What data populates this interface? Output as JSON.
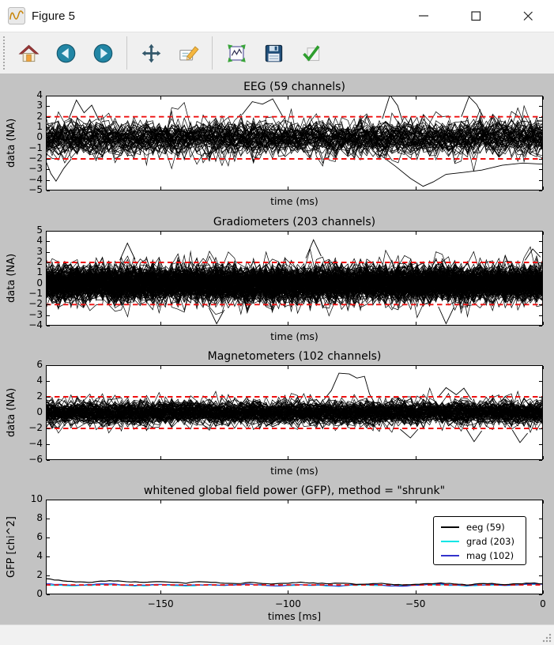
{
  "window": {
    "title": "Figure 5",
    "controls": [
      {
        "icon": "minimize-icon"
      },
      {
        "icon": "maximize-icon"
      },
      {
        "icon": "close-icon"
      }
    ]
  },
  "toolbar": {
    "buttons": [
      {
        "icon": "home-icon"
      },
      {
        "icon": "back-icon"
      },
      {
        "icon": "forward-icon"
      },
      {
        "icon": "pan-icon"
      },
      {
        "icon": "edit-plot-icon"
      },
      {
        "icon": "configure-subplots-icon"
      },
      {
        "icon": "save-icon"
      },
      {
        "icon": "customize-icon"
      }
    ]
  },
  "colors": {
    "figure_bg": "#c3c3c3",
    "axes_bg": "#ffffff",
    "trace_black": "#000000",
    "threshold_red": "#ee1010",
    "grad_cyan": "#00e5e5",
    "mag_blue": "#3333cc"
  },
  "chart_data": [
    {
      "type": "line",
      "title": "EEG (59 channels)",
      "xlabel": "time (ms)",
      "ylabel": "data (NA)",
      "xlim": [
        -195,
        0
      ],
      "ylim": [
        -5,
        4
      ],
      "yticks": {
        "values": [
          4,
          3,
          2,
          1,
          0,
          -1,
          -2,
          -3,
          -4,
          -5
        ],
        "labels": [
          "4",
          "3",
          "2",
          "1",
          "0",
          "−1",
          "−2",
          "−3",
          "−4",
          "−5"
        ]
      },
      "xticks": {
        "values": [
          -150,
          -100,
          -50,
          0
        ],
        "labels": []
      },
      "n_channels": 59,
      "band_sd": 1.05,
      "clip": [
        -4.6,
        3.95
      ],
      "seed": 11,
      "threshold_lines": {
        "values": [
          2,
          -2
        ],
        "style": "dashed"
      },
      "outliers": [
        [
          [
            -64,
            -1.6
          ],
          [
            -58,
            -2.6
          ],
          [
            -52,
            -3.9
          ],
          [
            -47,
            -4.5
          ],
          [
            -43,
            -4.1
          ],
          [
            -38,
            -3.5
          ],
          [
            -31,
            -3.3
          ],
          [
            -24,
            -3.05
          ],
          [
            -16,
            -2.7
          ],
          [
            -8,
            -2.3
          ],
          [
            0,
            -2.5
          ]
        ],
        [
          [
            -195,
            -2.2
          ],
          [
            -193,
            -3.3
          ],
          [
            -191,
            -4.1
          ],
          [
            -188,
            -3.0
          ],
          [
            -185,
            -2.0
          ]
        ],
        [
          [
            -186,
            1.8
          ],
          [
            -183,
            3.6
          ],
          [
            -180,
            2.4
          ],
          [
            -177,
            3.2
          ],
          [
            -174,
            1.6
          ]
        ],
        [
          [
            -118,
            2.2
          ],
          [
            -114,
            3.5
          ],
          [
            -110,
            3.3
          ],
          [
            -106,
            3.6
          ],
          [
            -102,
            2.0
          ]
        ],
        [
          [
            -63,
            1.8
          ],
          [
            -60,
            4.0
          ],
          [
            -57,
            3.1
          ],
          [
            -55,
            1.5
          ]
        ],
        [
          [
            -32,
            2.0
          ],
          [
            -29,
            3.9
          ],
          [
            -26,
            3.2
          ],
          [
            -23,
            1.8
          ]
        ]
      ]
    },
    {
      "type": "line",
      "title": "Gradiometers (203 channels)",
      "xlabel": "time (ms)",
      "ylabel": "data (NA)",
      "xlim": [
        -195,
        0
      ],
      "ylim": [
        -4,
        5
      ],
      "yticks": {
        "values": [
          5,
          4,
          3,
          2,
          1,
          0,
          -1,
          -2,
          -3,
          -4
        ],
        "labels": [
          "5",
          "4",
          "3",
          "2",
          "1",
          "0",
          "−1",
          "−2",
          "−3",
          "−4"
        ]
      },
      "xticks": {
        "values": [
          -150,
          -100,
          -50,
          0
        ],
        "labels": []
      },
      "n_channels": 203,
      "band_sd": 1.0,
      "clip": [
        -3.95,
        4.2
      ],
      "seed": 22,
      "threshold_lines": {
        "values": [
          2,
          -2
        ],
        "style": "dashed"
      },
      "outliers": [
        [
          [
            -166,
            2.2
          ],
          [
            -163,
            3.9
          ],
          [
            -160,
            2.3
          ]
        ],
        [
          [
            -93,
            2.4
          ],
          [
            -90,
            4.1
          ],
          [
            -87,
            2.6
          ]
        ],
        [
          [
            -131,
            -2.3
          ],
          [
            -128,
            -3.9
          ],
          [
            -125,
            -2.5
          ]
        ],
        [
          [
            -41,
            -2.2
          ],
          [
            -38,
            -3.8
          ],
          [
            -35,
            -2.3
          ]
        ],
        [
          [
            -7,
            2.2
          ],
          [
            -4,
            3.3
          ],
          [
            -1,
            2.5
          ]
        ]
      ]
    },
    {
      "type": "line",
      "title": "Magnetometers (102 channels)",
      "xlabel": "time (ms)",
      "ylabel": "data (NA)",
      "xlim": [
        -195,
        0
      ],
      "ylim": [
        -6,
        6
      ],
      "yticks": {
        "values": [
          6,
          4,
          2,
          0,
          -2,
          -4,
          -6
        ],
        "labels": [
          "6",
          "4",
          "2",
          "0",
          "−2",
          "−4",
          "−6"
        ]
      },
      "xticks": {
        "values": [
          -150,
          -100,
          -50,
          0
        ],
        "labels": []
      },
      "n_channels": 102,
      "band_sd": 0.9,
      "clip": [
        -3.7,
        3.4
      ],
      "seed": 33,
      "threshold_lines": {
        "values": [
          2,
          -2
        ],
        "style": "dashed"
      },
      "outliers": [
        [
          [
            -86,
            1.6
          ],
          [
            -83,
            2.8
          ],
          [
            -80,
            4.9
          ],
          [
            -76,
            5.0
          ],
          [
            -73,
            4.3
          ],
          [
            -70,
            4.5
          ],
          [
            -68,
            2.2
          ],
          [
            -66,
            1.2
          ]
        ],
        [
          [
            -41,
            2.0
          ],
          [
            -38,
            3.3
          ],
          [
            -34,
            2.3
          ],
          [
            -31,
            3.0
          ],
          [
            -28,
            1.6
          ]
        ],
        [
          [
            -30,
            -2.1
          ],
          [
            -27,
            -3.6
          ],
          [
            -24,
            -2.3
          ]
        ],
        [
          [
            -12,
            -2.2
          ],
          [
            -9,
            -3.7
          ],
          [
            -6,
            -2.6
          ]
        ],
        [
          [
            -56,
            -2.1
          ],
          [
            -52,
            -3.2
          ],
          [
            -49,
            -2.1
          ]
        ]
      ]
    },
    {
      "type": "line",
      "title": "whitened global field power (GFP), method = \"shrunk\"",
      "xlabel": "times [ms]",
      "ylabel": "GFP [chi^2]",
      "xlim": [
        -195,
        0
      ],
      "ylim": [
        0,
        10
      ],
      "yticks": {
        "values": [
          10,
          8,
          6,
          4,
          2,
          0
        ],
        "labels": [
          "10",
          "8",
          "6",
          "4",
          "2",
          "0"
        ]
      },
      "xticks": {
        "values": [
          -150,
          -100,
          -50,
          0
        ],
        "labels": [
          "−150",
          "−100",
          "−50",
          "0"
        ]
      },
      "seed": 44,
      "threshold_lines": {
        "values": [
          1
        ],
        "style": "dashed"
      },
      "legend_position": "upper right",
      "x_step_ms": 5,
      "series": [
        {
          "name": "eeg (59)",
          "color": "#000000",
          "values": [
            1.65,
            1.5,
            1.35,
            1.28,
            1.33,
            1.45,
            1.38,
            1.3,
            1.26,
            1.34,
            1.28,
            1.2,
            1.34,
            1.28,
            1.18,
            1.14,
            1.24,
            1.18,
            1.1,
            1.2,
            1.26,
            1.2,
            1.14,
            1.2,
            1.1,
            1.05,
            1.16,
            1.1,
            0.96,
            1.05,
            1.14,
            1.2,
            1.1,
            1.0,
            1.1,
            1.16,
            1.05,
            1.1,
            1.2,
            1.14
          ]
        },
        {
          "name": "grad (203)",
          "color": "#00e5e5",
          "values": [
            1.02,
            0.96,
            0.9,
            0.95,
            1.0,
            1.05,
            0.96,
            0.9,
            0.94,
            1.0,
            0.95,
            0.9,
            0.96,
            1.0,
            0.94,
            1.0,
            1.06,
            0.96,
            0.9,
            0.94,
            1.0,
            0.96,
            0.9,
            0.86,
            0.95,
            1.0,
            0.96,
            0.9,
            0.95,
            1.0,
            1.04,
            1.0,
            0.95,
            0.9,
            0.95,
            1.0,
            0.96,
            1.0,
            1.05,
            1.1
          ]
        },
        {
          "name": "mag (102)",
          "color": "#3333cc",
          "values": [
            1.12,
            1.05,
            0.95,
            1.0,
            1.1,
            1.14,
            1.0,
            0.95,
            1.0,
            1.06,
            1.0,
            0.94,
            1.0,
            1.05,
            0.95,
            1.0,
            1.1,
            1.0,
            0.9,
            0.95,
            1.05,
            1.0,
            0.95,
            0.9,
            1.0,
            1.06,
            1.0,
            0.9,
            0.86,
            0.95,
            1.05,
            1.1,
            1.0,
            0.95,
            1.0,
            1.05,
            0.96,
            1.0,
            1.1,
            1.05
          ]
        }
      ]
    }
  ]
}
